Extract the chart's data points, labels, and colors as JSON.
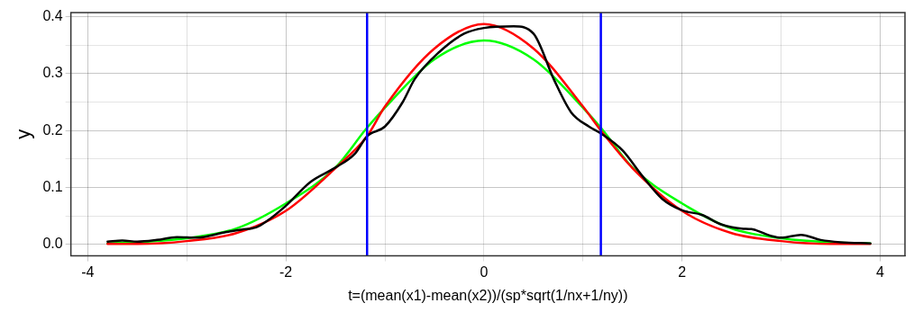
{
  "chart_data": {
    "type": "line",
    "xlabel": "t=(mean(x1)-mean(x2))/(sp*sqrt(1/nx+1/ny))",
    "ylabel": "y",
    "xlim": [
      -4.17,
      4.25
    ],
    "ylim": [
      -0.02,
      0.407
    ],
    "xticks": [
      -4,
      {
        "value": -3,
        "label": null
      },
      -2,
      {
        "value": -1,
        "label": null
      },
      0,
      {
        "value": 1,
        "label": null
      },
      2,
      {
        "value": 3,
        "label": null
      },
      4
    ],
    "yticks": [
      {
        "value": 0,
        "label": "0.0"
      },
      {
        "value": 0.05,
        "label": null
      },
      {
        "value": 0.1,
        "label": "0.1"
      },
      {
        "value": 0.15,
        "label": null
      },
      {
        "value": 0.2,
        "label": "0.2"
      },
      {
        "value": 0.25,
        "label": null
      },
      {
        "value": 0.3,
        "label": "0.3"
      },
      {
        "value": 0.35,
        "label": null
      },
      {
        "value": 0.4,
        "label": "0.4"
      }
    ],
    "grid": true,
    "legend": false,
    "marker": "none",
    "line_style": "solid",
    "ref_lines": [
      {
        "axis": "x",
        "value": -1.18,
        "color": "#0000ff"
      },
      {
        "axis": "x",
        "value": 1.18,
        "color": "#0000ff"
      }
    ],
    "series": [
      {
        "color": "#000000",
        "x": [
          -3.8,
          -3.65,
          -3.5,
          -3.3,
          -3.1,
          -2.9,
          -2.6,
          -2.45,
          -2.3,
          -2.2,
          -2.0,
          -1.75,
          -1.5,
          -1.3,
          -1.18,
          -1.0,
          -0.82,
          -0.7,
          -0.45,
          -0.2,
          0,
          0.3,
          0.5,
          0.71,
          0.88,
          1.06,
          1.18,
          1.4,
          1.6,
          1.8,
          2.0,
          2.2,
          2.4,
          2.6,
          2.7,
          2.9,
          3.0,
          3.2,
          3.4,
          3.6,
          3.9
        ],
        "values": [
          0.005,
          0.007,
          0.005,
          0.008,
          0.013,
          0.012,
          0.022,
          0.026,
          0.03,
          0.04,
          0.068,
          0.11,
          0.135,
          0.16,
          0.19,
          0.207,
          0.25,
          0.29,
          0.338,
          0.37,
          0.38,
          0.383,
          0.37,
          0.288,
          0.232,
          0.207,
          0.195,
          0.165,
          0.12,
          0.08,
          0.06,
          0.052,
          0.035,
          0.028,
          0.027,
          0.015,
          0.012,
          0.017,
          0.008,
          0.004,
          0.002
        ]
      },
      {
        "color": "#ff0000",
        "x": [
          -3.8,
          -3.5,
          -3.0,
          -2.5,
          -2.0,
          -1.5,
          -1.18,
          -1.0,
          -0.5,
          0,
          0.5,
          1.0,
          1.18,
          1.5,
          2.0,
          2.5,
          3.0,
          3.5,
          3.9
        ],
        "values": [
          0.001,
          0.001,
          0.006,
          0.02,
          0.059,
          0.134,
          0.19,
          0.242,
          0.344,
          0.387,
          0.344,
          0.242,
          0.2,
          0.134,
          0.059,
          0.02,
          0.006,
          0.001,
          0.001
        ]
      },
      {
        "color": "#00ff00",
        "x": [
          -3.8,
          -3.5,
          -3.0,
          -2.5,
          -2.0,
          -1.5,
          -1.18,
          -1.0,
          -0.5,
          0,
          0.5,
          1.0,
          1.18,
          1.5,
          2.0,
          2.5,
          3.0,
          3.5,
          3.9
        ],
        "values": [
          0.002,
          0.004,
          0.011,
          0.028,
          0.072,
          0.135,
          0.205,
          0.24,
          0.325,
          0.358,
          0.325,
          0.24,
          0.205,
          0.135,
          0.072,
          0.028,
          0.011,
          0.004,
          0.002
        ]
      }
    ]
  }
}
